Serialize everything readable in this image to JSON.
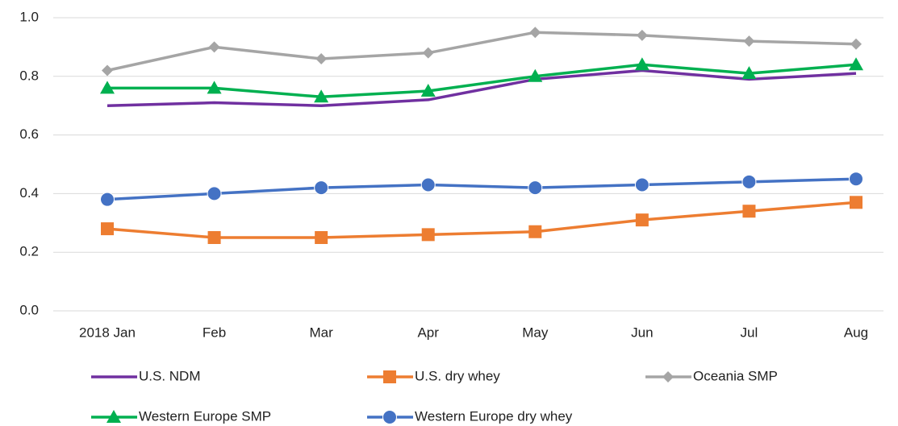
{
  "chart_data": {
    "type": "line",
    "categories": [
      "2018 Jan",
      "Feb",
      "Mar",
      "Apr",
      "May",
      "Jun",
      "Jul",
      "Aug"
    ],
    "series": [
      {
        "name": "U.S. NDM",
        "color": "#7030a0",
        "marker": "none",
        "values": [
          0.7,
          0.71,
          0.7,
          0.72,
          0.79,
          0.82,
          0.79,
          0.81
        ]
      },
      {
        "name": "U.S. dry whey",
        "color": "#ed7d31",
        "marker": "square",
        "values": [
          0.28,
          0.25,
          0.25,
          0.26,
          0.27,
          0.31,
          0.34,
          0.37
        ]
      },
      {
        "name": "Oceania SMP",
        "color": "#a5a5a5",
        "marker": "diamond",
        "values": [
          0.82,
          0.9,
          0.86,
          0.88,
          0.95,
          0.94,
          0.92,
          0.91
        ]
      },
      {
        "name": "Western Europe SMP",
        "color": "#00b050",
        "marker": "triangle",
        "values": [
          0.76,
          0.76,
          0.73,
          0.75,
          0.8,
          0.84,
          0.81,
          0.84
        ]
      },
      {
        "name": "Western Europe dry whey",
        "color": "#4472c4",
        "marker": "circle",
        "values": [
          0.38,
          0.4,
          0.42,
          0.43,
          0.42,
          0.43,
          0.44,
          0.45
        ]
      }
    ],
    "ylim": [
      0,
      1
    ],
    "yticks": [
      {
        "value": 0,
        "label": "0.0"
      },
      0.2,
      0.4,
      0.6,
      0.8,
      {
        "value": 1,
        "label": "1.0"
      }
    ],
    "grid": true,
    "legend": "bottom"
  }
}
